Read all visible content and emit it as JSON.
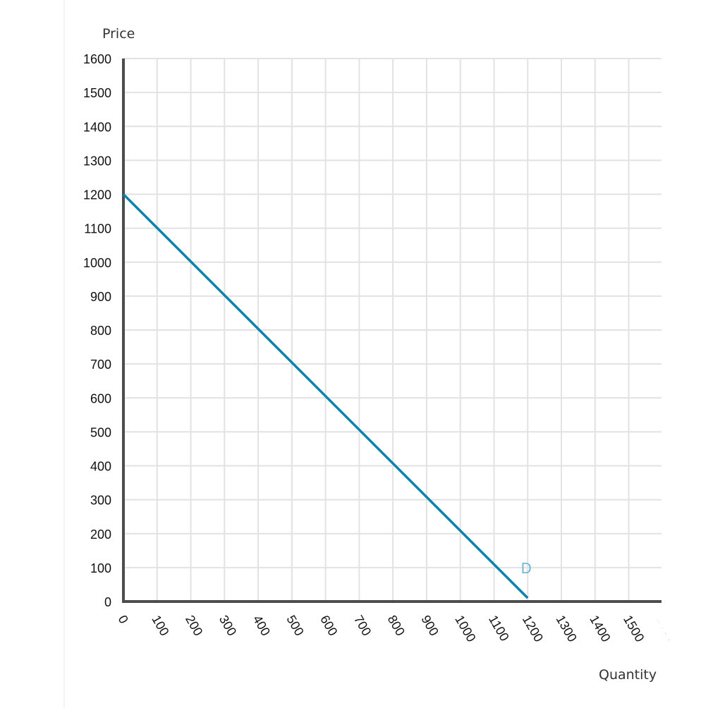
{
  "chart_data": {
    "type": "line",
    "title": "",
    "xlabel": "Quantity",
    "ylabel": "Price",
    "xlim": [
      0,
      1585
    ],
    "ylim": [
      0,
      1600
    ],
    "grid": true,
    "x_ticks": [
      0,
      100,
      200,
      300,
      400,
      500,
      600,
      700,
      800,
      900,
      1000,
      1100,
      1200,
      1300,
      1400,
      1500
    ],
    "y_ticks": [
      0,
      100,
      200,
      300,
      400,
      500,
      600,
      700,
      800,
      900,
      1000,
      1100,
      1200,
      1300,
      1400,
      1500,
      1600
    ],
    "series": [
      {
        "name": "D",
        "color": "#0a82b0",
        "label_color": "#6fb8d8",
        "points": [
          [
            0,
            1200
          ],
          [
            1200,
            0
          ]
        ]
      }
    ],
    "annotations": [
      {
        "text": "D",
        "x": 1165,
        "y": 100
      }
    ]
  },
  "colors": {
    "grid": "#e2e2e2",
    "axis": "#4d4d4d",
    "line": "#0a82b0",
    "label": "#6fb8d8"
  }
}
